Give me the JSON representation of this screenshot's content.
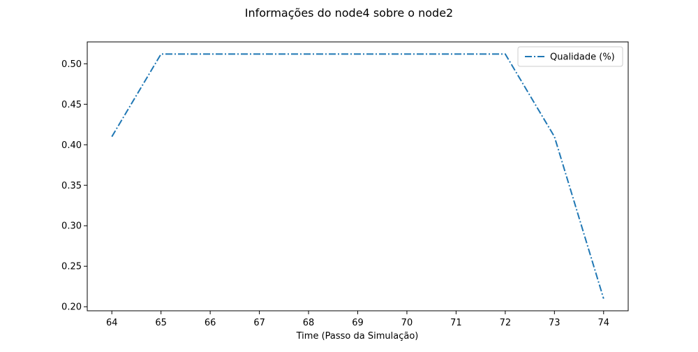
{
  "chart_data": {
    "type": "line",
    "title": "Informações do node4 sobre o node2",
    "xlabel": "Time (Passo da Simulação)",
    "ylabel": "",
    "x": [
      64,
      65,
      66,
      67,
      68,
      69,
      70,
      71,
      72,
      73,
      74
    ],
    "series": [
      {
        "name": "Qualidade (%)",
        "values": [
          0.41,
          0.512,
          0.512,
          0.512,
          0.512,
          0.512,
          0.512,
          0.512,
          0.512,
          0.41,
          0.21
        ],
        "color": "#1f77b4",
        "line_style": "dash-dot"
      }
    ],
    "xlim": [
      63.5,
      74.5
    ],
    "ylim": [
      0.195,
      0.527
    ],
    "xticks": [
      "64",
      "65",
      "66",
      "67",
      "68",
      "69",
      "70",
      "71",
      "72",
      "73",
      "74"
    ],
    "yticks": [
      "0.20",
      "0.25",
      "0.30",
      "0.35",
      "0.40",
      "0.45",
      "0.50"
    ],
    "grid": false,
    "legend_position": "top-right"
  }
}
